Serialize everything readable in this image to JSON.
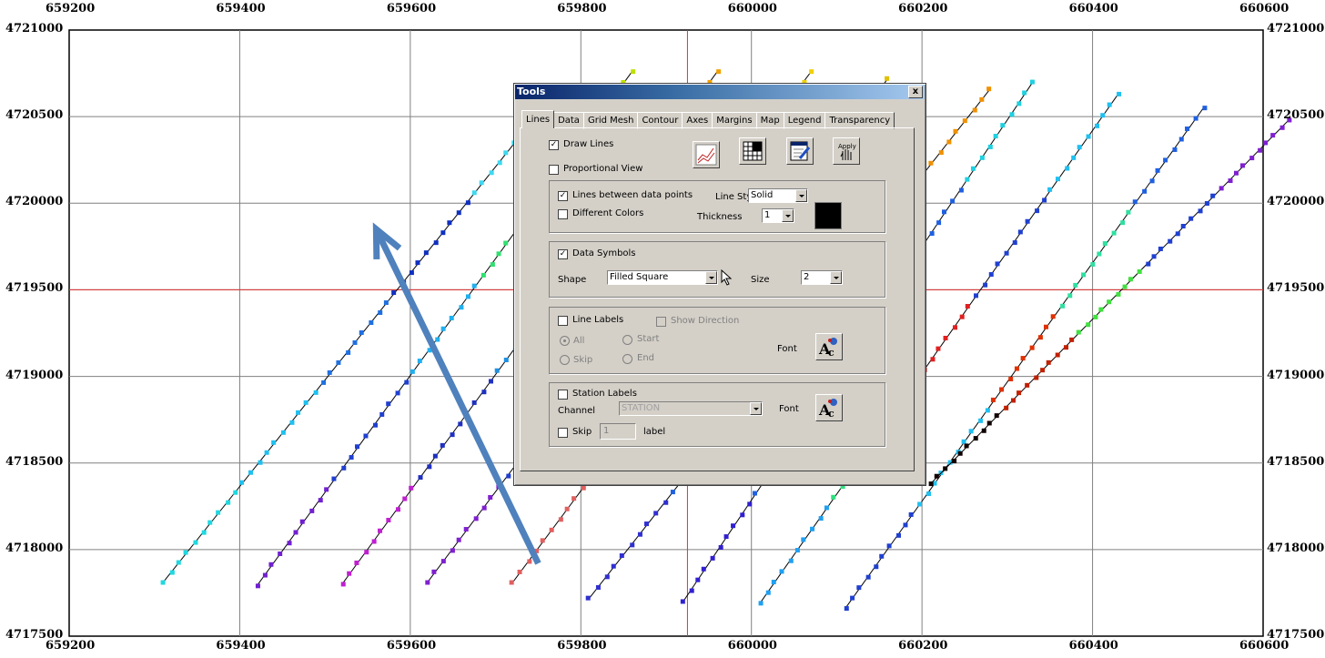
{
  "map": {
    "x_ticks": [
      "659200",
      "659400",
      "659600",
      "659800",
      "660000",
      "660200",
      "660400",
      "660600"
    ],
    "y_ticks": [
      "4721000",
      "4720500",
      "4720000",
      "4719500",
      "4719000",
      "4718500",
      "4718000",
      "4717500"
    ],
    "x_range": [
      659200,
      660600
    ],
    "y_range": [
      4717500,
      4721000
    ],
    "grid": true,
    "crosshair": {
      "x": 659925,
      "y": 4719500,
      "color": "#e03030"
    },
    "lines": [
      {
        "start": [
          659310,
          4717810
        ],
        "end": [
          659760,
          4720580
        ],
        "colors": [
          "#20d8e0",
          "#20c0f0",
          "#2070e0",
          "#1030c0",
          "#40d8f0"
        ]
      },
      {
        "start": [
          659420,
          4717790
        ],
        "end": [
          659860,
          4720760
        ],
        "colors": [
          "#7020d0",
          "#2040d0",
          "#20b0f0",
          "#30e070",
          "#c0e000"
        ]
      },
      {
        "start": [
          659520,
          4717800
        ],
        "end": [
          659960,
          4720760
        ],
        "colors": [
          "#c020d0",
          "#2030c0",
          "#2090e0",
          "#60e030",
          "#f0a000"
        ]
      },
      {
        "start": [
          659620,
          4717810
        ],
        "end": [
          660070,
          4720760
        ],
        "colors": [
          "#8020d0",
          "#2040d0",
          "#20a0f0",
          "#40e060",
          "#f0d000"
        ]
      },
      {
        "start": [
          659720,
          4717810
        ],
        "end": [
          660160,
          4720720
        ],
        "colors": [
          "#e06060",
          "#7020c0",
          "#3050d0",
          "#30d0a0",
          "#e0c000"
        ]
      },
      {
        "start": [
          659810,
          4717720
        ],
        "end": [
          660280,
          4720660
        ],
        "colors": [
          "#3030d0",
          "#2060e0",
          "#20b0f0",
          "#40e050",
          "#f09000"
        ]
      },
      {
        "start": [
          659920,
          4717700
        ],
        "end": [
          660330,
          4720700
        ],
        "colors": [
          "#3020d0",
          "#2060e0",
          "#20c0f0",
          "#2060e0",
          "#20d0e0"
        ]
      },
      {
        "start": [
          660010,
          4717690
        ],
        "end": [
          660430,
          4720630
        ],
        "colors": [
          "#20a0f0",
          "#30e080",
          "#e02020",
          "#2040d0",
          "#20c0f0"
        ]
      },
      {
        "start": [
          660110,
          4717660
        ],
        "end": [
          660530,
          4720550
        ],
        "colors": [
          "#2040d0",
          "#20c0f0",
          "#e03000",
          "#30e0a0",
          "#2060e0"
        ]
      },
      {
        "start": [
          660210,
          4718380
        ],
        "end": [
          660630,
          4720480
        ],
        "colors": [
          "#100000",
          "#c02000",
          "#40e040",
          "#2040d0",
          "#8020d0"
        ]
      }
    ],
    "arrow": {
      "from": [
        659750,
        4717920
      ],
      "to": [
        659560,
        4719850
      ],
      "color": "#4f81bd"
    }
  },
  "dialog": {
    "title": "Tools",
    "close_glyph": "x",
    "tabs": [
      "Lines",
      "Data",
      "Grid Mesh",
      "Contour",
      "Axes",
      "Margins",
      "Map",
      "Legend",
      "Transparency"
    ],
    "active_tab": "Lines",
    "draw_lines": {
      "label": "Draw Lines",
      "checked": true
    },
    "proportional_view": {
      "label": "Proportional View",
      "checked": false
    },
    "toolbar_icons": [
      "chart-lines-icon",
      "grid-table-icon",
      "edit-properties-icon",
      "apply-icon"
    ],
    "apply_text": "Apply",
    "lines_group": {
      "between_points": {
        "label": "Lines between data points",
        "checked": true
      },
      "different_colors": {
        "label": "Different Colors",
        "checked": false
      },
      "line_style_label": "Line Style",
      "line_style_value": "Solid",
      "thickness_label": "Thickness",
      "thickness_value": "1",
      "color_swatch": "#000000"
    },
    "symbols_group": {
      "data_symbols": {
        "label": "Data Symbols",
        "checked": true
      },
      "shape_label": "Shape",
      "shape_value": "Filled Square",
      "size_label": "Size",
      "size_value": "2"
    },
    "line_labels_group": {
      "line_labels": {
        "label": "Line Labels",
        "checked": false
      },
      "show_direction": {
        "label": "Show Direction",
        "checked": false
      },
      "all": "All",
      "start": "Start",
      "skip": "Skip",
      "end": "End",
      "font_label": "Font"
    },
    "station_labels_group": {
      "station_labels": {
        "label": "Station Labels",
        "checked": false
      },
      "channel_label": "Channel",
      "channel_value": "STATION",
      "font_label": "Font",
      "skip": {
        "label": "Skip",
        "checked": false
      },
      "skip_value": "1",
      "label_suffix": "label"
    }
  }
}
